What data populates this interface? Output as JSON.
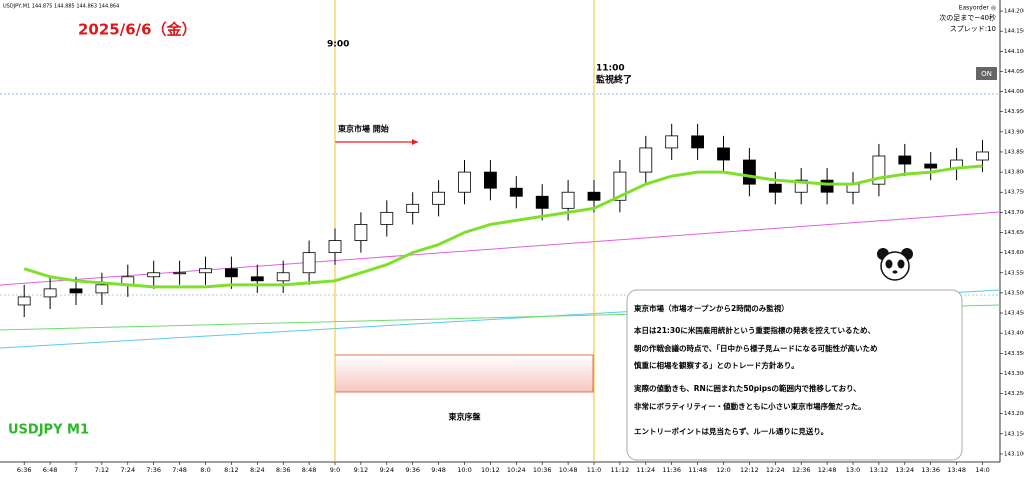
{
  "header": {
    "symbol_info": "USDJPY,M1  144.875 144.885 144.863 144.864",
    "date": "2025/6/6（金）",
    "easyorder": "Easyorder ◎",
    "next_bar": "次の足まで~40秒",
    "spread": "スプレッド:10",
    "on_button": "ON",
    "watermark": "USDJPY M1"
  },
  "chart_data": {
    "type": "candlestick",
    "categories": [
      "6:36",
      "6:48",
      "7",
      "7:12",
      "7:24",
      "7:36",
      "7:48",
      "8:0",
      "8:12",
      "8:24",
      "8:36",
      "8:48",
      "9:0",
      "9:12",
      "9:24",
      "9:36",
      "9:48",
      "10:0",
      "10:12",
      "10:24",
      "10:36",
      "10:48",
      "11:0",
      "11:12",
      "11:24",
      "11:36",
      "11:48",
      "12:0",
      "12:12",
      "12:24",
      "12:36",
      "12:48",
      "13:0",
      "13:12",
      "13:24",
      "13:36",
      "13:48",
      "14:0"
    ],
    "open": [
      143.47,
      143.49,
      143.51,
      143.5,
      143.52,
      143.54,
      143.55,
      143.55,
      143.56,
      143.54,
      143.53,
      143.55,
      143.6,
      143.63,
      143.67,
      143.7,
      143.72,
      143.75,
      143.8,
      143.76,
      143.74,
      143.71,
      143.75,
      143.73,
      143.8,
      143.86,
      143.89,
      143.86,
      143.83,
      143.77,
      143.75,
      143.78,
      143.75,
      143.77,
      143.84,
      143.82,
      143.81,
      143.83
    ],
    "high": [
      143.52,
      143.54,
      143.54,
      143.55,
      143.57,
      143.58,
      143.58,
      143.59,
      143.59,
      143.57,
      143.58,
      143.63,
      143.66,
      143.7,
      143.73,
      143.75,
      143.78,
      143.83,
      143.83,
      143.79,
      143.77,
      143.78,
      143.78,
      143.83,
      143.89,
      143.92,
      143.92,
      143.89,
      143.86,
      143.8,
      143.81,
      143.81,
      143.8,
      143.87,
      143.87,
      143.85,
      143.86,
      143.88
    ],
    "low": [
      143.44,
      143.46,
      143.47,
      143.47,
      143.49,
      143.51,
      143.52,
      143.52,
      143.51,
      143.5,
      143.5,
      143.52,
      143.57,
      143.6,
      143.64,
      143.67,
      143.69,
      143.72,
      143.73,
      143.71,
      143.68,
      143.68,
      143.7,
      143.7,
      143.77,
      143.83,
      143.83,
      143.8,
      143.74,
      143.72,
      143.72,
      143.72,
      143.72,
      143.74,
      143.79,
      143.78,
      143.78,
      143.8
    ],
    "close": [
      143.49,
      143.51,
      143.5,
      143.52,
      143.54,
      143.55,
      143.55,
      143.56,
      143.54,
      143.53,
      143.55,
      143.6,
      143.63,
      143.67,
      143.7,
      143.72,
      143.75,
      143.8,
      143.76,
      143.74,
      143.71,
      143.75,
      143.73,
      143.8,
      143.86,
      143.89,
      143.86,
      143.83,
      143.77,
      143.75,
      143.78,
      143.75,
      143.77,
      143.84,
      143.82,
      143.81,
      143.83,
      143.85
    ],
    "lines": [
      {
        "color": "#7fe02a",
        "values": [
          143.56,
          143.54,
          143.53,
          143.525,
          143.52,
          143.515,
          143.515,
          143.515,
          143.52,
          143.52,
          143.52,
          143.525,
          143.53,
          143.55,
          143.57,
          143.6,
          143.62,
          143.65,
          143.67,
          143.68,
          143.69,
          143.7,
          143.71,
          143.74,
          143.77,
          143.79,
          143.8,
          143.8,
          143.79,
          143.78,
          143.775,
          143.77,
          143.77,
          143.785,
          143.795,
          143.8,
          143.81,
          143.815
        ]
      }
    ],
    "ylim": [
      143.08,
      144.215
    ],
    "yticks": [
      {
        "value": 143.1,
        "label": "143.100"
      },
      {
        "value": 143.15,
        "label": "143.150"
      },
      {
        "value": 143.2,
        "label": "143.200"
      },
      {
        "value": 143.25,
        "label": "143.250"
      },
      {
        "value": 143.3,
        "label": "143.300"
      },
      {
        "value": 143.35,
        "label": "143.350"
      },
      {
        "value": 143.4,
        "label": "143.400"
      },
      {
        "value": 143.45,
        "label": "143.450"
      },
      {
        "value": 143.5,
        "label": "143.500"
      },
      {
        "value": 143.55,
        "label": "143.550"
      },
      {
        "value": 143.6,
        "label": "143.600"
      },
      {
        "value": 143.65,
        "label": "143.650"
      },
      {
        "value": 143.7,
        "label": "143.700"
      },
      {
        "value": 143.75,
        "label": "143.750"
      },
      {
        "value": 143.8,
        "label": "143.800"
      },
      {
        "value": 143.85,
        "label": "143.850"
      },
      {
        "value": 143.9,
        "label": "143.900"
      },
      {
        "value": 143.95,
        "label": "143.950"
      },
      {
        "value": 144.0,
        "label": "144.000"
      },
      {
        "value": 144.05,
        "label": "144.050"
      },
      {
        "value": 144.1,
        "label": "144.100"
      },
      {
        "value": 144.15,
        "label": "144.150"
      },
      {
        "value": 144.2,
        "label": "144.200"
      }
    ],
    "annotations": {
      "open_time": "9:00",
      "end_time": "11:00",
      "end_label": "監視終了",
      "market_open": "東京市場 開始",
      "early": "東京序盤"
    }
  },
  "note": {
    "title": "東京市場（市場オープンから2時間のみ監視）",
    "lines": [
      "本日は21:30に米国雇用統計という重要指標の発表を控えているため、",
      "朝の作戦会議の時点で、「日中から様子見ムードになる可能性が高いため",
      "慎重に相場を観察する」とのトレード方針あり。",
      "実際の値動きも、RNに囲まれた50pipsの範囲内で推移しており、",
      "非常にボラティリティー・値動きともに小さい東京市場序盤だった。",
      "エントリーポイントは見当たらず、ルール通りに見送り。"
    ]
  }
}
